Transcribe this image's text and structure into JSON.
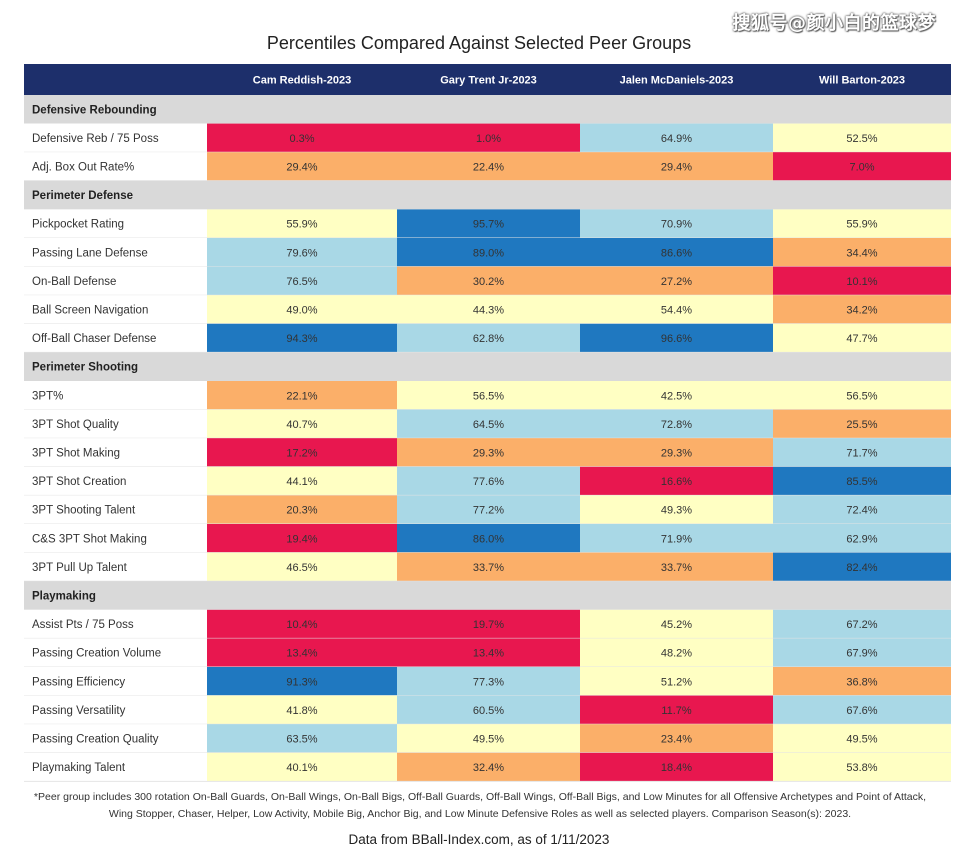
{
  "watermark": "搜狐号@颜小白的篮球梦",
  "chart_data": {
    "type": "table",
    "title": "Percentiles Compared Against Selected Peer Groups",
    "columns": [
      "",
      "Cam Reddish-2023",
      "Gary Trent Jr-2023",
      "Jalen McDaniels-2023",
      "Will Barton-2023"
    ],
    "sections": [
      {
        "name": "Defensive Rebounding",
        "rows": [
          {
            "metric": "Defensive Reb / 75 Poss",
            "values": [
              "0.3%",
              "1.0%",
              "64.9%",
              "52.5%"
            ]
          },
          {
            "metric": "Adj. Box Out Rate%",
            "values": [
              "29.4%",
              "22.4%",
              "29.4%",
              "7.0%"
            ]
          }
        ]
      },
      {
        "name": "Perimeter Defense",
        "rows": [
          {
            "metric": "Pickpocket Rating",
            "values": [
              "55.9%",
              "95.7%",
              "70.9%",
              "55.9%"
            ]
          },
          {
            "metric": "Passing Lane Defense",
            "values": [
              "79.6%",
              "89.0%",
              "86.6%",
              "34.4%"
            ]
          },
          {
            "metric": "On-Ball Defense",
            "values": [
              "76.5%",
              "30.2%",
              "27.2%",
              "10.1%"
            ]
          },
          {
            "metric": "Ball Screen Navigation",
            "values": [
              "49.0%",
              "44.3%",
              "54.4%",
              "34.2%"
            ]
          },
          {
            "metric": "Off-Ball Chaser Defense",
            "values": [
              "94.3%",
              "62.8%",
              "96.6%",
              "47.7%"
            ]
          }
        ]
      },
      {
        "name": "Perimeter Shooting",
        "rows": [
          {
            "metric": "3PT%",
            "values": [
              "22.1%",
              "56.5%",
              "42.5%",
              "56.5%"
            ]
          },
          {
            "metric": "3PT Shot Quality",
            "values": [
              "40.7%",
              "64.5%",
              "72.8%",
              "25.5%"
            ]
          },
          {
            "metric": "3PT Shot Making",
            "values": [
              "17.2%",
              "29.3%",
              "29.3%",
              "71.7%"
            ]
          },
          {
            "metric": "3PT Shot Creation",
            "values": [
              "44.1%",
              "77.6%",
              "16.6%",
              "85.5%"
            ]
          },
          {
            "metric": "3PT Shooting Talent",
            "values": [
              "20.3%",
              "77.2%",
              "49.3%",
              "72.4%"
            ]
          },
          {
            "metric": "C&S 3PT Shot Making",
            "values": [
              "19.4%",
              "86.0%",
              "71.9%",
              "62.9%"
            ]
          },
          {
            "metric": "3PT Pull Up Talent",
            "values": [
              "46.5%",
              "33.7%",
              "33.7%",
              "82.4%"
            ]
          }
        ]
      },
      {
        "name": "Playmaking",
        "rows": [
          {
            "metric": "Assist Pts / 75 Poss",
            "values": [
              "10.4%",
              "19.7%",
              "45.2%",
              "67.2%"
            ]
          },
          {
            "metric": "Passing Creation Volume",
            "values": [
              "13.4%",
              "13.4%",
              "48.2%",
              "67.9%"
            ]
          },
          {
            "metric": "Passing Efficiency",
            "values": [
              "91.3%",
              "77.3%",
              "51.2%",
              "36.8%"
            ]
          },
          {
            "metric": "Passing Versatility",
            "values": [
              "41.8%",
              "60.5%",
              "11.7%",
              "67.6%"
            ]
          },
          {
            "metric": "Passing Creation Quality",
            "values": [
              "63.5%",
              "49.5%",
              "23.4%",
              "49.5%"
            ]
          },
          {
            "metric": "Playmaking Talent",
            "values": [
              "40.1%",
              "32.4%",
              "18.4%",
              "53.8%"
            ]
          }
        ]
      }
    ]
  },
  "footnote_line1": "*Peer group includes 300 rotation On-Ball Guards, On-Ball Wings, On-Ball Bigs, Off-Ball Guards, Off-Ball Wings, Off-Ball Bigs, and Low Minutes for all Offensive Archetypes and Point of Attack,",
  "footnote_line2": "Wing Stopper, Chaser, Helper, Low Activity, Mobile Big, Anchor Big, and Low Minute Defensive Roles as well as selected players. Comparison Season(s): 2023.",
  "source": "Data from BBall-Index.com, as of 1/11/2023",
  "colors": {
    "header_bg": "#1d2f6b",
    "section_bg": "#d9d9d9",
    "bin_0_20": "#e8174f",
    "bin_20_40": "#fbaf69",
    "bin_40_60": "#ffffc3",
    "bin_60_80": "#a9d8e6",
    "bin_80_100": "#1f78c0"
  }
}
